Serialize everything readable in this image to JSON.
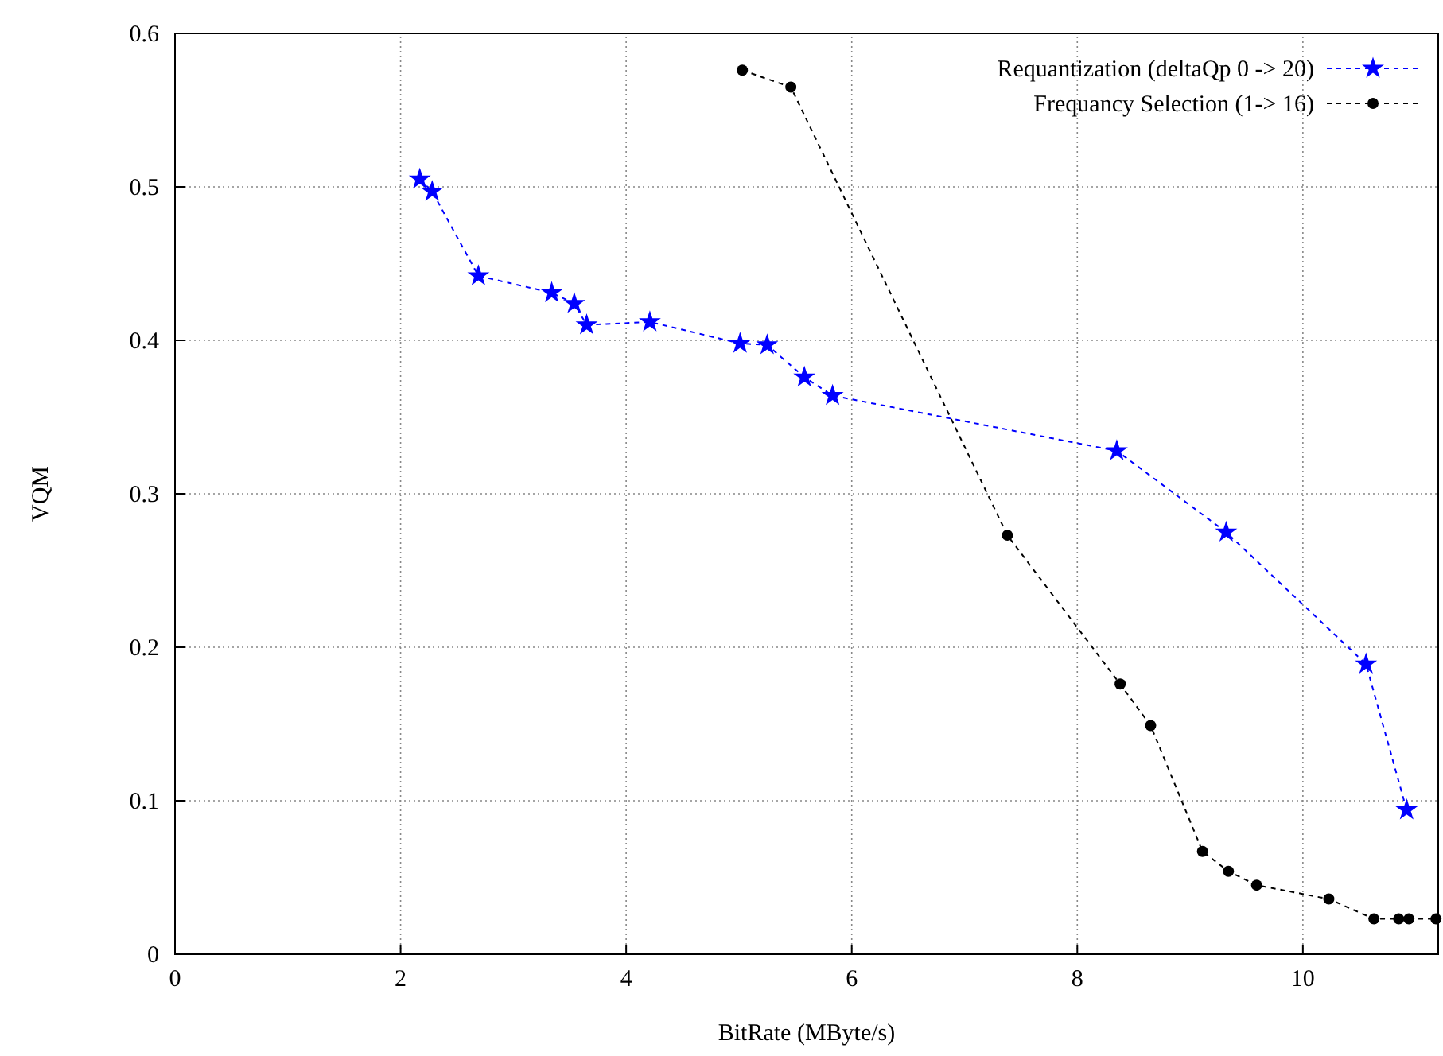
{
  "chart_data": {
    "type": "line",
    "xlabel": "BitRate (MByte/s)",
    "ylabel": "VQM",
    "xlim": [
      0,
      11.2
    ],
    "xticks": [
      0,
      2,
      4,
      6,
      8,
      10
    ],
    "ylim": [
      0,
      0.6
    ],
    "yticks": [
      0,
      0.1,
      0.2,
      0.3,
      0.4,
      0.5,
      0.6
    ],
    "grid": true,
    "legend": "top right",
    "line_style": "dashed",
    "series": [
      {
        "name": "Requantization (deltaQp 0 -> 20)",
        "color": "#0000ff",
        "marker": "star",
        "x": [
          2.17,
          2.28,
          2.69,
          3.34,
          3.54,
          3.65,
          4.21,
          5.01,
          5.25,
          5.58,
          5.83,
          8.35,
          9.32,
          10.56,
          10.92
        ],
        "values": [
          0.505,
          0.497,
          0.442,
          0.431,
          0.424,
          0.41,
          0.412,
          0.398,
          0.397,
          0.376,
          0.364,
          0.328,
          0.275,
          0.189,
          0.094
        ]
      },
      {
        "name": "Frequancy Selection (1-> 16)",
        "color": "#000000",
        "marker": "circle",
        "x": [
          5.03,
          5.46,
          7.38,
          8.38,
          8.65,
          9.11,
          9.34,
          9.59,
          10.23,
          10.63,
          10.85,
          10.94,
          11.18
        ],
        "values": [
          0.576,
          0.565,
          0.273,
          0.176,
          0.149,
          0.067,
          0.054,
          0.045,
          0.036,
          0.023,
          0.023,
          0.023,
          0.023
        ]
      }
    ]
  }
}
